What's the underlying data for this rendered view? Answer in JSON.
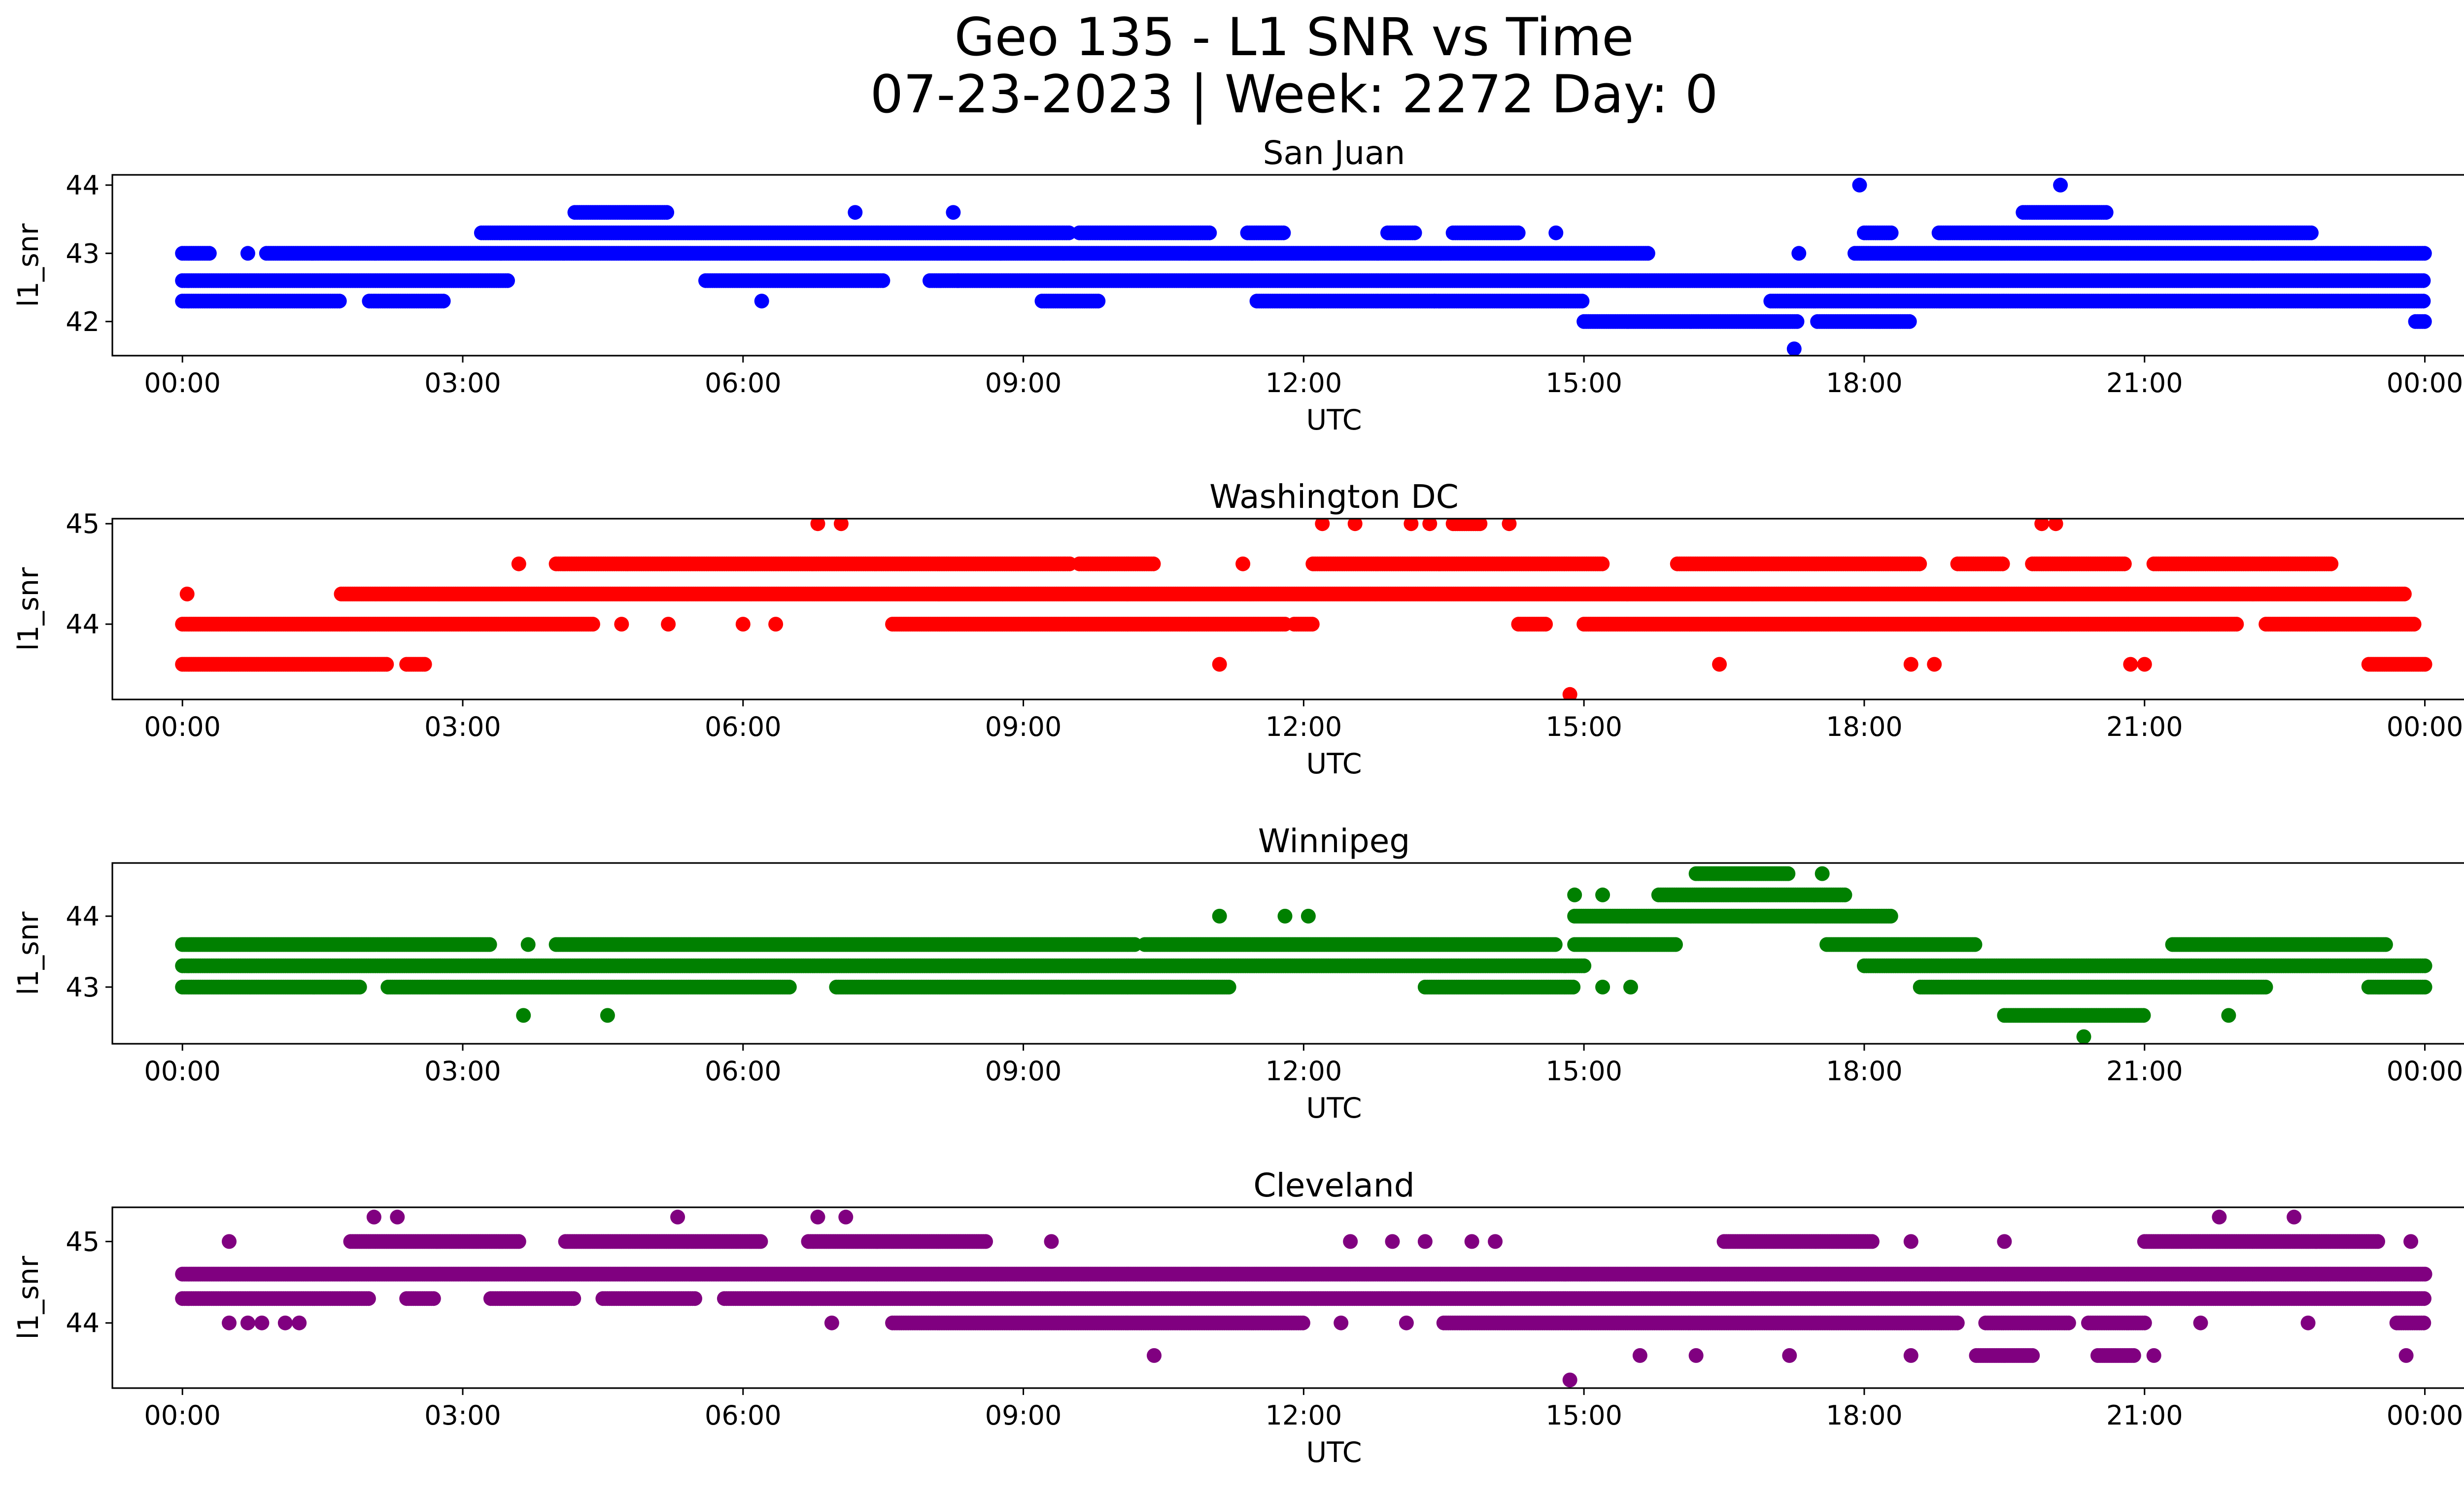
{
  "figure": {
    "title_line1": "Geo 135 - L1 SNR vs Time",
    "title_line2": "07-23-2023 | Week: 2272 Day: 0"
  },
  "chart_data": [
    {
      "type": "scatter",
      "title": "San Juan",
      "xlabel": "UTC",
      "ylabel": "l1_snr",
      "color": "#0000ff",
      "xlim_hours": [
        -0.75,
        25.4
      ],
      "ylim": [
        41.5,
        44.15
      ],
      "yticks": [
        42,
        43,
        44
      ],
      "xtick_labels": [
        "00:00",
        "03:00",
        "06:00",
        "09:00",
        "12:00",
        "15:00",
        "18:00",
        "21:00",
        "00:00"
      ],
      "levels": [
        {
          "snr": 42.3,
          "ranges": [
            [
              0,
              1.7
            ],
            [
              2.0,
              2.8
            ],
            [
              9.2,
              9.8
            ],
            [
              11.5,
              15.0
            ],
            [
              17.0,
              24.0
            ]
          ]
        },
        {
          "snr": 42.6,
          "ranges": [
            [
              0,
              3.5
            ],
            [
              5.6,
              7.5
            ],
            [
              8.0,
              24.0
            ]
          ]
        },
        {
          "snr": 43.0,
          "ranges": [
            [
              0,
              0.3
            ],
            [
              0.9,
              15.7
            ],
            [
              17.9,
              24.0
            ]
          ]
        },
        {
          "snr": 43.3,
          "ranges": [
            [
              3.2,
              9.5
            ],
            [
              9.6,
              11.0
            ],
            [
              11.4,
              11.8
            ],
            [
              12.9,
              13.2
            ],
            [
              13.6,
              14.3
            ],
            [
              18.0,
              18.3
            ],
            [
              18.8,
              22.8
            ]
          ]
        },
        {
          "snr": 43.6,
          "ranges": [
            [
              4.2,
              5.2
            ],
            [
              19.7,
              20.6
            ]
          ]
        },
        {
          "snr": 42.0,
          "ranges": [
            [
              15.0,
              17.3
            ],
            [
              17.5,
              18.5
            ],
            [
              23.9,
              24.0
            ]
          ]
        }
      ],
      "points": [
        [
          17.25,
          41.6
        ],
        [
          17.95,
          44.0
        ],
        [
          20.1,
          44.0
        ],
        [
          7.2,
          43.6
        ],
        [
          8.25,
          43.6
        ],
        [
          14.7,
          43.3
        ],
        [
          17.3,
          43.0
        ],
        [
          0.7,
          43.0
        ],
        [
          6.2,
          42.3
        ],
        [
          13.4,
          42.3
        ],
        [
          8.3,
          42.6
        ]
      ]
    },
    {
      "type": "scatter",
      "title": "Washington DC",
      "xlabel": "UTC",
      "ylabel": "l1_snr",
      "color": "#ff0000",
      "xlim_hours": [
        -0.75,
        25.4
      ],
      "ylim": [
        43.25,
        45.05
      ],
      "yticks": [
        44,
        45
      ],
      "xtick_labels": [
        "00:00",
        "03:00",
        "06:00",
        "09:00",
        "12:00",
        "15:00",
        "18:00",
        "21:00",
        "00:00"
      ],
      "levels": [
        {
          "snr": 43.6,
          "ranges": [
            [
              0,
              2.2
            ],
            [
              2.4,
              2.6
            ],
            [
              23.4,
              24.0
            ]
          ]
        },
        {
          "snr": 44.0,
          "ranges": [
            [
              0,
              4.4
            ],
            [
              7.6,
              11.8
            ],
            [
              11.9,
              12.1
            ],
            [
              14.3,
              14.6
            ],
            [
              15.0,
              22.0
            ],
            [
              22.3,
              23.9
            ]
          ]
        },
        {
          "snr": 44.3,
          "ranges": [
            [
              1.7,
              23.8
            ]
          ]
        },
        {
          "snr": 44.6,
          "ranges": [
            [
              4.0,
              9.5
            ],
            [
              9.6,
              10.4
            ],
            [
              12.1,
              15.2
            ],
            [
              16.0,
              18.6
            ],
            [
              19.0,
              19.5
            ],
            [
              19.8,
              20.8
            ],
            [
              21.1,
              23.0
            ]
          ]
        },
        {
          "snr": 45.0,
          "ranges": [
            [
              13.6,
              13.9
            ]
          ]
        }
      ],
      "points": [
        [
          0.05,
          44.3
        ],
        [
          6.8,
          45.0
        ],
        [
          7.05,
          45.0
        ],
        [
          12.2,
          45.0
        ],
        [
          12.55,
          45.0
        ],
        [
          13.15,
          45.0
        ],
        [
          13.35,
          45.0
        ],
        [
          14.2,
          45.0
        ],
        [
          19.9,
          45.0
        ],
        [
          20.05,
          45.0
        ],
        [
          14.85,
          43.3
        ],
        [
          11.1,
          43.6
        ],
        [
          16.45,
          43.6
        ],
        [
          18.5,
          43.6
        ],
        [
          18.75,
          43.6
        ],
        [
          20.85,
          43.6
        ],
        [
          21.0,
          43.6
        ],
        [
          3.6,
          44.6
        ],
        [
          11.35,
          44.6
        ],
        [
          4.7,
          44.0
        ],
        [
          5.2,
          44.0
        ],
        [
          6.0,
          44.0
        ],
        [
          6.35,
          44.0
        ]
      ]
    },
    {
      "type": "scatter",
      "title": "Winnipeg",
      "xlabel": "UTC",
      "ylabel": "l1_snr",
      "color": "#008000",
      "xlim_hours": [
        -0.75,
        25.4
      ],
      "ylim": [
        42.2,
        44.75
      ],
      "yticks": [
        43,
        44
      ],
      "xtick_labels": [
        "00:00",
        "03:00",
        "06:00",
        "09:00",
        "12:00",
        "15:00",
        "18:00",
        "21:00",
        "00:00"
      ],
      "levels": [
        {
          "snr": 43.0,
          "ranges": [
            [
              0,
              1.9
            ],
            [
              2.2,
              6.5
            ],
            [
              7.0,
              11.2
            ],
            [
              13.3,
              14.9
            ],
            [
              18.6,
              22.3
            ],
            [
              23.4,
              24.0
            ]
          ]
        },
        {
          "snr": 43.3,
          "ranges": [
            [
              0,
              15.0
            ],
            [
              18.0,
              24.0
            ]
          ]
        },
        {
          "snr": 43.6,
          "ranges": [
            [
              0,
              3.3
            ],
            [
              4.0,
              10.2
            ],
            [
              10.3,
              14.7
            ],
            [
              14.9,
              16.0
            ],
            [
              17.6,
              19.2
            ],
            [
              21.3,
              23.6
            ]
          ]
        },
        {
          "snr": 44.0,
          "ranges": [
            [
              14.9,
              18.3
            ]
          ]
        },
        {
          "snr": 44.3,
          "ranges": [
            [
              15.8,
              17.8
            ]
          ]
        },
        {
          "snr": 44.6,
          "ranges": [
            [
              16.2,
              17.2
            ]
          ]
        },
        {
          "snr": 42.6,
          "ranges": [
            [
              19.5,
              21.0
            ]
          ]
        }
      ],
      "points": [
        [
          3.65,
          42.6
        ],
        [
          4.55,
          42.6
        ],
        [
          20.35,
          42.3
        ],
        [
          21.9,
          42.6
        ],
        [
          11.1,
          44.0
        ],
        [
          11.8,
          44.0
        ],
        [
          12.05,
          44.0
        ],
        [
          14.9,
          44.3
        ],
        [
          15.2,
          44.3
        ],
        [
          17.55,
          44.6
        ],
        [
          15.2,
          43.0
        ],
        [
          15.5,
          43.0
        ],
        [
          3.7,
          43.6
        ],
        [
          4.7,
          43.6
        ]
      ]
    },
    {
      "type": "scatter",
      "title": "Cleveland",
      "xlabel": "UTC",
      "ylabel": "l1_snr",
      "color": "#800080",
      "xlim_hours": [
        -0.75,
        25.4
      ],
      "ylim": [
        43.2,
        45.42
      ],
      "yticks": [
        44,
        45
      ],
      "xtick_labels": [
        "00:00",
        "03:00",
        "06:00",
        "09:00",
        "12:00",
        "15:00",
        "18:00",
        "21:00",
        "00:00"
      ],
      "levels": [
        {
          "snr": 44.0,
          "ranges": [
            [
              7.6,
              12.0
            ],
            [
              13.5,
              19.0
            ],
            [
              19.3,
              20.2
            ],
            [
              20.4,
              21.0
            ],
            [
              23.7,
              24.0
            ]
          ]
        },
        {
          "snr": 44.3,
          "ranges": [
            [
              0,
              2.0
            ],
            [
              2.4,
              2.7
            ],
            [
              3.3,
              4.2
            ],
            [
              4.5,
              5.5
            ],
            [
              5.8,
              24.0
            ]
          ]
        },
        {
          "snr": 44.6,
          "ranges": [
            [
              0,
              24.0
            ]
          ]
        },
        {
          "snr": 45.0,
          "ranges": [
            [
              1.8,
              3.6
            ],
            [
              4.1,
              6.2
            ],
            [
              6.7,
              8.6
            ],
            [
              16.5,
              18.1
            ],
            [
              21.0,
              23.5
            ]
          ]
        },
        {
          "snr": 43.6,
          "ranges": [
            [
              19.2,
              19.8
            ],
            [
              20.5,
              20.9
            ]
          ]
        }
      ],
      "points": [
        [
          0.5,
          45.0
        ],
        [
          2.05,
          45.3
        ],
        [
          2.3,
          45.3
        ],
        [
          5.3,
          45.3
        ],
        [
          6.8,
          45.3
        ],
        [
          7.1,
          45.3
        ],
        [
          21.8,
          45.3
        ],
        [
          22.6,
          45.3
        ],
        [
          14.85,
          43.3
        ],
        [
          10.4,
          43.6
        ],
        [
          15.6,
          43.6
        ],
        [
          16.2,
          43.6
        ],
        [
          17.2,
          43.6
        ],
        [
          18.5,
          43.6
        ],
        [
          21.1,
          43.6
        ],
        [
          23.8,
          43.6
        ],
        [
          0.5,
          44.0
        ],
        [
          0.7,
          44.0
        ],
        [
          0.85,
          44.0
        ],
        [
          1.1,
          44.0
        ],
        [
          1.25,
          44.0
        ],
        [
          6.95,
          44.0
        ],
        [
          22.75,
          44.0
        ],
        [
          12.5,
          45.0
        ],
        [
          12.95,
          45.0
        ],
        [
          13.3,
          45.0
        ],
        [
          13.8,
          45.0
        ],
        [
          14.05,
          45.0
        ],
        [
          9.3,
          45.0
        ],
        [
          18.5,
          45.0
        ],
        [
          19.5,
          45.0
        ],
        [
          23.85,
          45.0
        ],
        [
          12.4,
          44.0
        ],
        [
          13.1,
          44.0
        ],
        [
          21.6,
          44.0
        ]
      ]
    }
  ]
}
